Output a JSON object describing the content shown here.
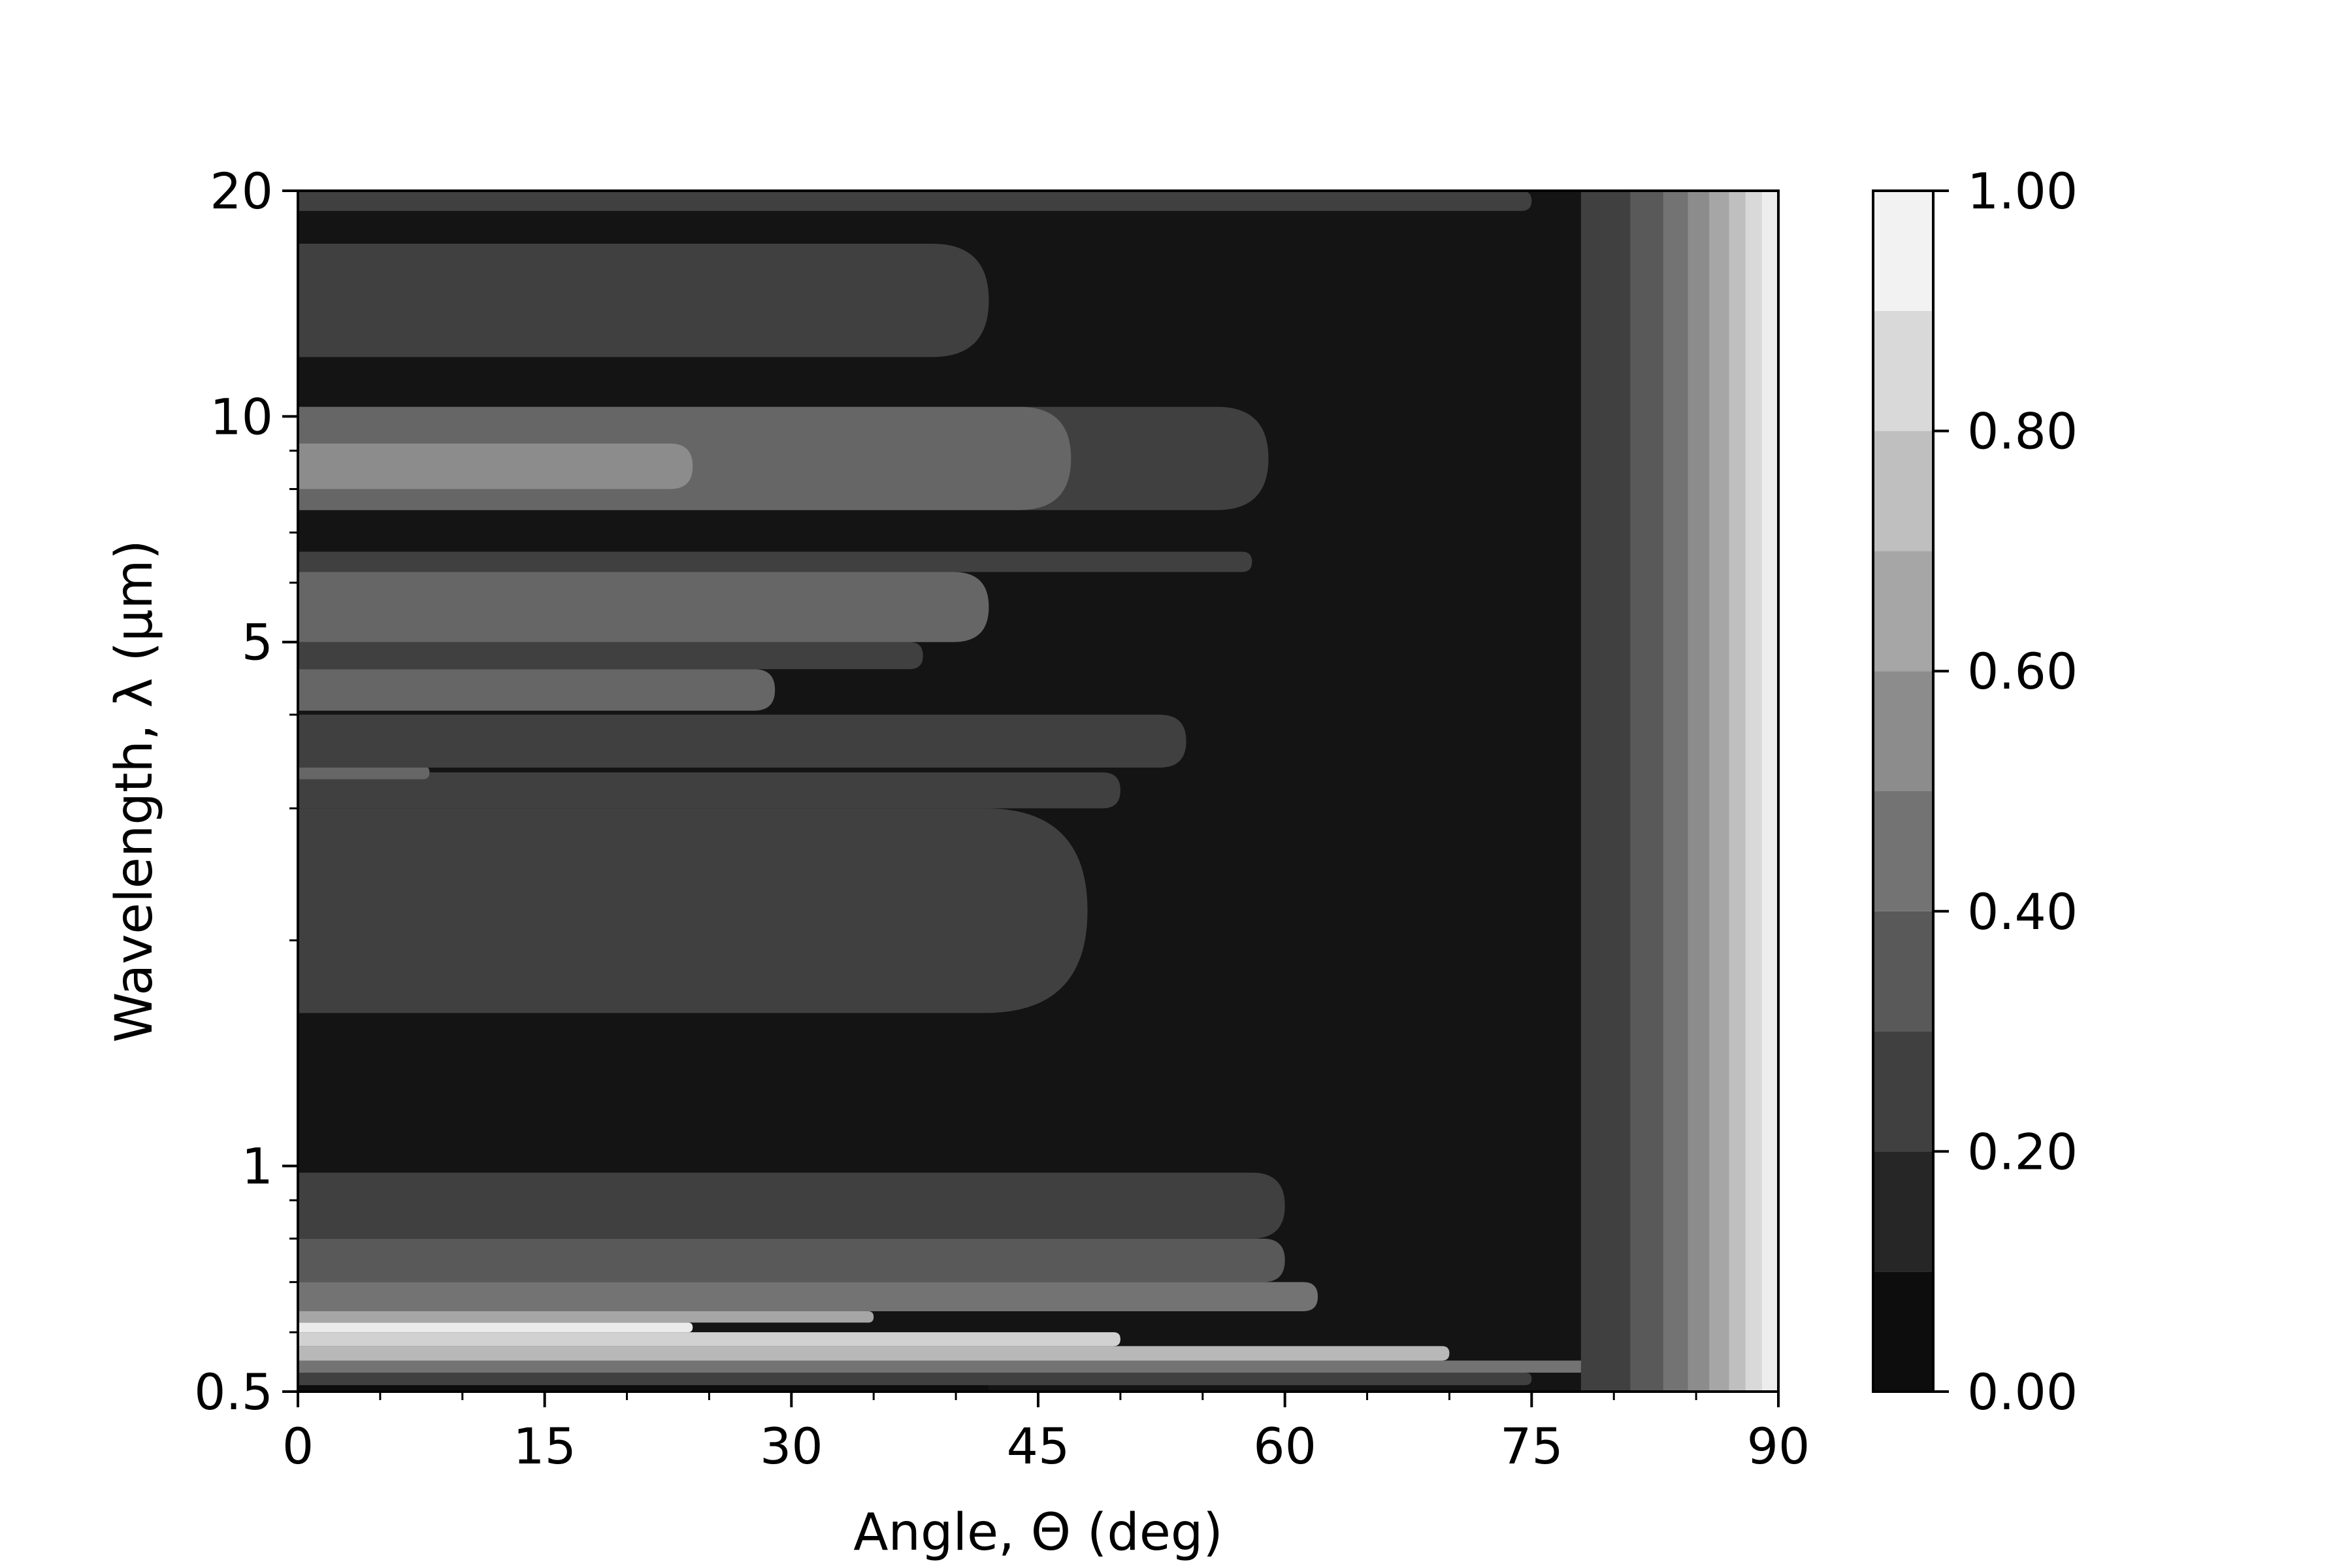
{
  "chart_data": {
    "type": "heatmap",
    "subtype": "filled-contour",
    "colormap": "gray",
    "xlabel": "Angle, Θ (deg)",
    "ylabel": "Wavelength, λ (μm)",
    "xlim": [
      0,
      90
    ],
    "ylim": [
      0.5,
      20
    ],
    "yscale": "log",
    "grid": false,
    "xticks": [
      0,
      15,
      30,
      45,
      60,
      75,
      90
    ],
    "xtick_labels": [
      "0",
      "15",
      "30",
      "45",
      "60",
      "75",
      "90"
    ],
    "yticks": [
      0.5,
      1,
      5,
      10,
      20
    ],
    "ytick_labels": [
      "0.5",
      "1",
      "5",
      "10",
      "20"
    ],
    "colorbar": {
      "range": [
        0,
        1
      ],
      "levels": [
        0.0,
        0.1,
        0.2,
        0.3,
        0.4,
        0.5,
        0.6,
        0.7,
        0.8,
        0.9,
        1.0
      ],
      "ticks": [
        0.0,
        0.2,
        0.4,
        0.6,
        0.8,
        1.0
      ],
      "tick_labels": [
        "0.00",
        "0.20",
        "0.40",
        "0.60",
        "0.80",
        "1.00"
      ]
    },
    "bands": [
      {
        "lmin": 0.5,
        "lmax": 0.51,
        "value": 0.05,
        "edge_angle": 42
      },
      {
        "lmin": 0.51,
        "lmax": 0.53,
        "value": 0.25,
        "edge_angle": 75
      },
      {
        "lmin": 0.53,
        "lmax": 0.55,
        "value": 0.45,
        "edge_angle": 80
      },
      {
        "lmin": 0.55,
        "lmax": 0.575,
        "value": 0.72,
        "edge_angle": 70
      },
      {
        "lmin": 0.575,
        "lmax": 0.6,
        "value": 0.82,
        "edge_angle": 50
      },
      {
        "lmin": 0.6,
        "lmax": 0.618,
        "value": 0.92,
        "edge_angle": 24
      },
      {
        "lmin": 0.618,
        "lmax": 0.64,
        "value": 0.65,
        "edge_angle": 35
      },
      {
        "lmin": 0.64,
        "lmax": 0.7,
        "value": 0.45,
        "edge_angle": 62
      },
      {
        "lmin": 0.7,
        "lmax": 0.8,
        "value": 0.35,
        "edge_angle": 60
      },
      {
        "lmin": 0.8,
        "lmax": 0.98,
        "value": 0.25,
        "edge_angle": 60
      },
      {
        "lmin": 0.98,
        "lmax": 1.6,
        "value": 0.08,
        "edge_angle": 0
      },
      {
        "lmin": 1.6,
        "lmax": 3.0,
        "value": 0.25,
        "edge_angle": 48
      },
      {
        "lmin": 3.0,
        "lmax": 3.35,
        "value": 0.25,
        "edge_angle": 50
      },
      {
        "lmin": 3.28,
        "lmax": 3.42,
        "value": 0.4,
        "edge_angle": 8
      },
      {
        "lmin": 3.4,
        "lmax": 4.0,
        "value": 0.25,
        "edge_angle": 54
      },
      {
        "lmin": 4.05,
        "lmax": 4.6,
        "value": 0.4,
        "edge_angle": 29
      },
      {
        "lmin": 4.6,
        "lmax": 5.0,
        "value": 0.25,
        "edge_angle": 38
      },
      {
        "lmin": 5.0,
        "lmax": 6.2,
        "value": 0.4,
        "edge_angle": 42
      },
      {
        "lmin": 6.2,
        "lmax": 6.6,
        "value": 0.25,
        "edge_angle": 58
      },
      {
        "lmin": 6.6,
        "lmax": 7.5,
        "value": 0.08,
        "edge_angle": 0
      },
      {
        "lmin": 7.5,
        "lmax": 10.3,
        "value": 0.25,
        "edge_angle": 59
      },
      {
        "lmin": 7.5,
        "lmax": 10.3,
        "value": 0.4,
        "edge_angle": 47
      },
      {
        "lmin": 8.0,
        "lmax": 9.2,
        "value": 0.55,
        "edge_angle": 24
      },
      {
        "lmin": 10.3,
        "lmax": 12.0,
        "value": 0.08,
        "edge_angle": 0
      },
      {
        "lmin": 12.0,
        "lmax": 17.0,
        "value": 0.25,
        "edge_angle": 42
      },
      {
        "lmin": 17.0,
        "lmax": 18.8,
        "value": 0.08,
        "edge_angle": 0
      },
      {
        "lmin": 18.8,
        "lmax": 20.0,
        "value": 0.25,
        "edge_angle": 75
      }
    ]
  }
}
